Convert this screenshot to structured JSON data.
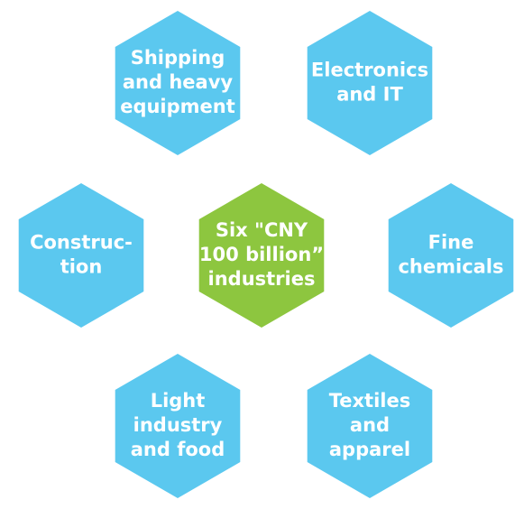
{
  "nodes": [
    {
      "lines": [
        "Shipping",
        "and heavy",
        "equipment"
      ],
      "role": "outer"
    },
    {
      "lines": [
        "Electronics",
        "and IT"
      ],
      "role": "outer"
    },
    {
      "lines": [
        "Construc-",
        "tion"
      ],
      "role": "outer"
    },
    {
      "lines": [
        "Six \"CNY",
        "100 billion”",
        "industries"
      ],
      "role": "center"
    },
    {
      "lines": [
        "Fine",
        "chemicals"
      ],
      "role": "outer"
    },
    {
      "lines": [
        "Light",
        "industry",
        "and food"
      ],
      "role": "outer"
    },
    {
      "lines": [
        "Textiles",
        "and",
        "apparel"
      ],
      "role": "outer"
    }
  ]
}
